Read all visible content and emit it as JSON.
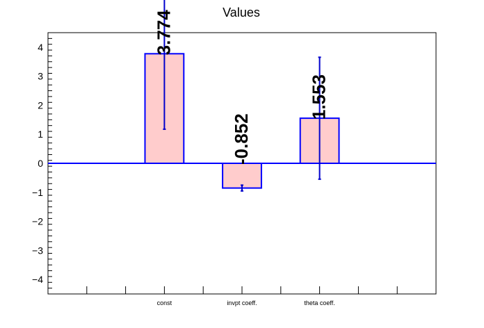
{
  "chart_data": {
    "type": "bar",
    "title": "Values",
    "xlabel": "",
    "ylabel": "",
    "categories": [
      "const",
      "invpt coeff.",
      "theta coeff."
    ],
    "values": [
      3.774,
      -0.852,
      1.553
    ],
    "value_labels": [
      "3.774",
      "-0.852",
      "1.553"
    ],
    "errors": [
      2.6,
      0.1,
      2.1
    ],
    "ylim": [
      -4.5,
      4.5
    ],
    "y_ticks": [
      -4,
      -3,
      -2,
      -1,
      0,
      1,
      2,
      3,
      4
    ],
    "y_tick_labels": [
      "−4",
      "−3",
      "−2",
      "−1",
      "0",
      "1",
      "2",
      "3",
      "4"
    ],
    "grid": false,
    "legend": "none",
    "colors": {
      "bar_fill": "#ffcccc",
      "bar_edge": "#0000ff",
      "zero_line": "#0000ff",
      "error_bar": "#0000cc",
      "axis": "#000000",
      "background": "#ffffff"
    }
  }
}
